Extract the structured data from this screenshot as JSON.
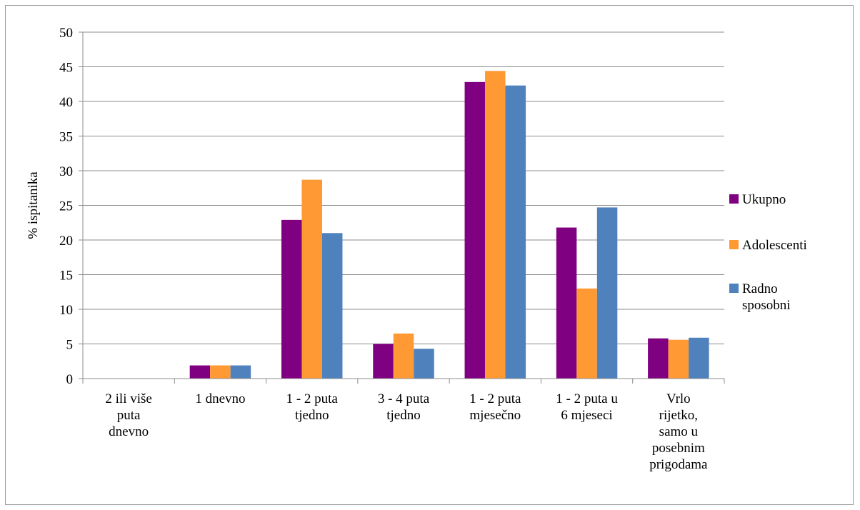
{
  "chart_data": {
    "type": "bar",
    "categories": [
      [
        "2 ili više",
        "puta",
        "dnevno"
      ],
      [
        "1 dnevno"
      ],
      [
        "1 - 2 puta",
        "tjedno"
      ],
      [
        "3 - 4 puta",
        "tjedno"
      ],
      [
        "1 - 2 puta",
        "mjesečno"
      ],
      [
        "1 - 2 puta u",
        "6 mjeseci"
      ],
      [
        "Vrlo",
        "rijetko,",
        "samo u",
        "posebnim",
        "prigodama"
      ]
    ],
    "series": [
      {
        "name": "Ukupno",
        "color": "#7f0080",
        "values": [
          0,
          1.9,
          22.9,
          5.0,
          42.8,
          21.8,
          5.8
        ]
      },
      {
        "name": "Adolescenti",
        "color": "#ff9933",
        "values": [
          0,
          1.9,
          28.7,
          6.5,
          44.4,
          13.0,
          5.6
        ]
      },
      {
        "name": "Radno sposobni",
        "legend_lines": [
          "Radno",
          "sposobni"
        ],
        "color": "#4f81bd",
        "values": [
          0,
          1.9,
          21.0,
          4.3,
          42.3,
          24.7,
          5.9
        ]
      }
    ],
    "title": "",
    "xlabel": "",
    "ylabel": "% ispitanika",
    "ylim": [
      0,
      50
    ],
    "yticks": [
      0,
      5,
      10,
      15,
      20,
      25,
      30,
      35,
      40,
      45,
      50
    ],
    "grid": true,
    "legend_position": "right"
  }
}
